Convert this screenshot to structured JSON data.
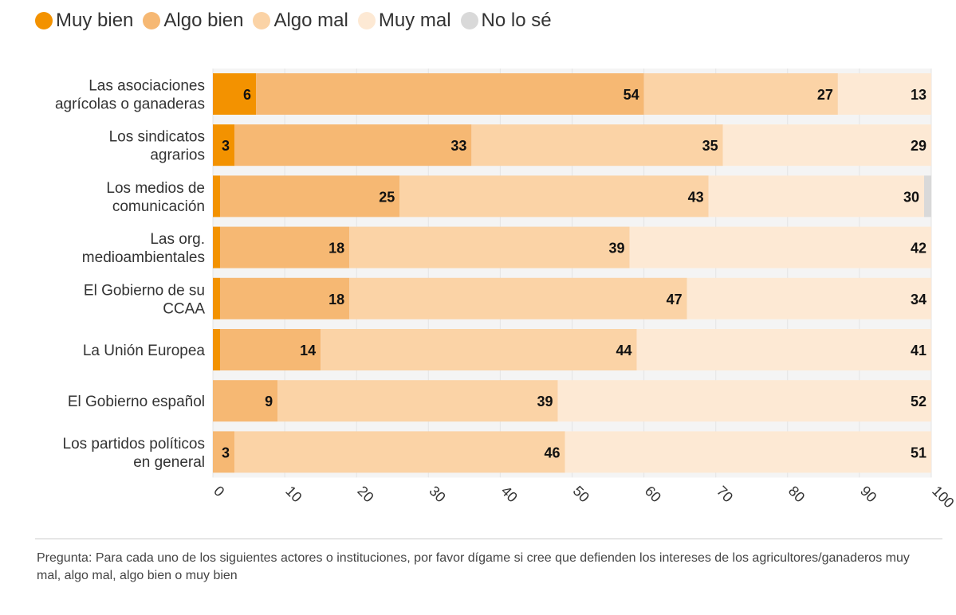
{
  "legend": {
    "items": [
      {
        "label": "Muy bien",
        "color": "#f39200"
      },
      {
        "label": "Algo bien",
        "color": "#f6b873"
      },
      {
        "label": "Algo mal",
        "color": "#fbd3a6"
      },
      {
        "label": "Muy mal",
        "color": "#fde9d4"
      },
      {
        "label": "No lo sé",
        "color": "#d9d9d9"
      }
    ]
  },
  "chart_data": {
    "type": "bar",
    "orientation": "horizontal",
    "stacked": true,
    "categories": [
      [
        "Las asociaciones",
        "agrícolas o ganaderas"
      ],
      [
        "Los sindicatos",
        "agrarios"
      ],
      [
        "Los medios de",
        "comunicación"
      ],
      [
        "Las org.",
        "medioambientales"
      ],
      [
        "El Gobierno de su",
        "CCAA"
      ],
      [
        "La Unión Europea"
      ],
      [
        "El Gobierno español"
      ],
      [
        "Los partidos políticos",
        "en general"
      ]
    ],
    "series": [
      {
        "name": "Muy bien",
        "color": "#f39200",
        "values": [
          6,
          3,
          1,
          1,
          1,
          1,
          0,
          0
        ],
        "labels": [
          "6",
          "3",
          "",
          "",
          "",
          "",
          "",
          ""
        ]
      },
      {
        "name": "Algo bien",
        "color": "#f6b873",
        "values": [
          54,
          33,
          25,
          18,
          18,
          14,
          9,
          3
        ],
        "labels": [
          "54",
          "33",
          "25",
          "18",
          "18",
          "14",
          "9",
          "3"
        ]
      },
      {
        "name": "Algo mal",
        "color": "#fbd3a6",
        "values": [
          27,
          35,
          43,
          39,
          47,
          44,
          39,
          46
        ],
        "labels": [
          "27",
          "35",
          "43",
          "39",
          "47",
          "44",
          "39",
          "46"
        ]
      },
      {
        "name": "Muy mal",
        "color": "#fde9d4",
        "values": [
          13,
          29,
          30,
          42,
          34,
          41,
          52,
          51
        ],
        "labels": [
          "13",
          "29",
          "30",
          "42",
          "34",
          "41",
          "52",
          "51"
        ]
      },
      {
        "name": "No lo sé",
        "color": "#d9d9d9",
        "values": [
          0,
          0,
          1,
          0,
          0,
          0,
          0,
          0
        ],
        "labels": [
          "",
          "",
          "",
          "",
          "",
          "",
          "",
          ""
        ]
      }
    ],
    "xlim": [
      0,
      100
    ],
    "xticks": [
      "0",
      "10",
      "20",
      "30",
      "40",
      "50",
      "60",
      "70",
      "80",
      "90",
      "100"
    ]
  },
  "footnote": {
    "text": "Pregunta: Para cada uno de los siguientes actores o instituciones, por favor dígame si cree que defienden los intereses de los agricultores/ganaderos muy mal, algo mal, algo bien o muy bien"
  }
}
